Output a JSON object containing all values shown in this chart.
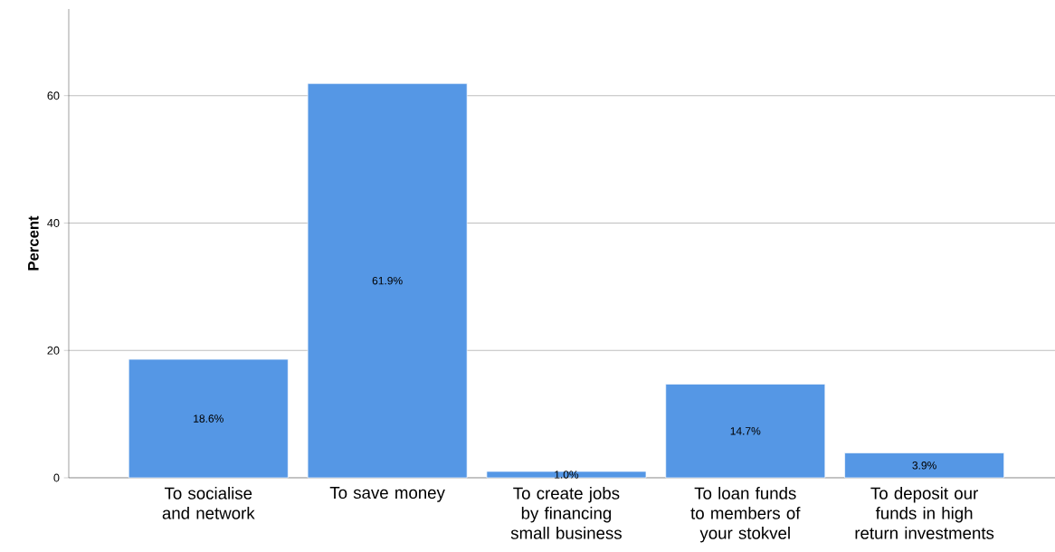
{
  "chart_data": {
    "type": "bar",
    "ylabel": "Percent",
    "categories": [
      "To socialise and network",
      "To save money",
      "To create jobs by financing small business",
      "To loan funds to members of your stokvel",
      "To deposit our funds in high return investments"
    ],
    "values": [
      18.6,
      61.9,
      1.0,
      14.7,
      3.9
    ],
    "value_labels": [
      "18.6%",
      "61.9%",
      "1.0%",
      "14.7%",
      "3.9%"
    ],
    "color": "#5597e5",
    "ylim": [
      0,
      73.6
    ],
    "yticks": [
      0,
      20,
      40,
      60
    ],
    "grid": "y"
  }
}
